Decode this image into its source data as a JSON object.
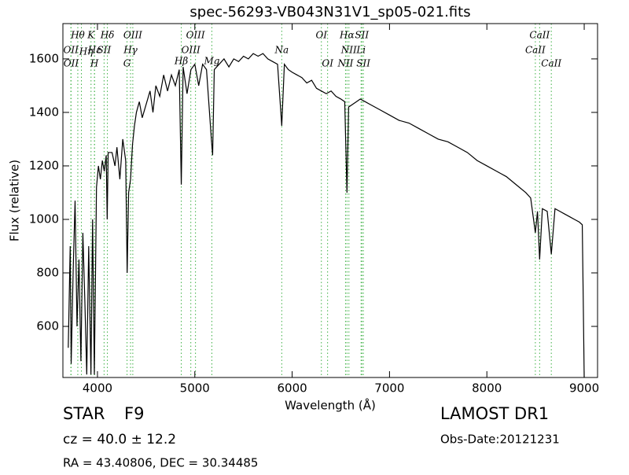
{
  "chart_data": {
    "type": "line",
    "title": "spec-56293-VB043N31V1_sp05-021.fits",
    "x_label": "Wavelength (Å)",
    "y_label": "Flux (relative)",
    "xlim": [
      3645,
      9137
    ],
    "ylim": [
      409,
      1732
    ],
    "xticks": [
      4000,
      5000,
      6000,
      7000,
      8000,
      9000
    ],
    "yticks": [
      600,
      800,
      1000,
      1200,
      1400,
      1600
    ],
    "series": [
      {
        "color": "#000000",
        "x": [
          3700,
          3720,
          3730,
          3750,
          3770,
          3790,
          3810,
          3830,
          3850,
          3870,
          3890,
          3910,
          3933,
          3950,
          3968,
          3990,
          4010,
          4030,
          4050,
          4070,
          4090,
          4100,
          4110,
          4150,
          4180,
          4200,
          4230,
          4260,
          4290,
          4305,
          4320,
          4340,
          4360,
          4380,
          4400,
          4430,
          4460,
          4500,
          4540,
          4570,
          4600,
          4640,
          4680,
          4720,
          4760,
          4800,
          4840,
          4861,
          4880,
          4920,
          4960,
          5000,
          5040,
          5080,
          5120,
          5170,
          5183,
          5200,
          5250,
          5300,
          5350,
          5400,
          5450,
          5500,
          5550,
          5600,
          5650,
          5700,
          5750,
          5800,
          5850,
          5893,
          5920,
          5960,
          6000,
          6050,
          6100,
          6150,
          6200,
          6250,
          6300,
          6350,
          6400,
          6450,
          6500,
          6540,
          6563,
          6580,
          6620,
          6660,
          6700,
          6750,
          6800,
          6900,
          7000,
          7100,
          7200,
          7300,
          7400,
          7500,
          7600,
          7700,
          7800,
          7900,
          8000,
          8100,
          8200,
          8300,
          8400,
          8450,
          8498,
          8520,
          8542,
          8570,
          8620,
          8662,
          8700,
          8750,
          8800,
          8850,
          8900,
          8950,
          8980,
          8990,
          9000
        ],
        "values": [
          520,
          900,
          460,
          800,
          1070,
          600,
          850,
          470,
          950,
          700,
          420,
          900,
          420,
          1000,
          420,
          1120,
          1200,
          1150,
          1220,
          1180,
          1240,
          1000,
          1250,
          1250,
          1200,
          1270,
          1150,
          1300,
          1220,
          800,
          1100,
          1150,
          1280,
          1350,
          1400,
          1440,
          1380,
          1430,
          1480,
          1400,
          1500,
          1460,
          1540,
          1480,
          1540,
          1500,
          1560,
          1130,
          1570,
          1470,
          1560,
          1580,
          1500,
          1580,
          1560,
          1300,
          1240,
          1560,
          1580,
          1600,
          1570,
          1600,
          1590,
          1610,
          1600,
          1620,
          1610,
          1620,
          1600,
          1590,
          1580,
          1350,
          1580,
          1560,
          1550,
          1540,
          1530,
          1510,
          1520,
          1490,
          1480,
          1470,
          1480,
          1460,
          1450,
          1440,
          1100,
          1420,
          1430,
          1440,
          1450,
          1440,
          1430,
          1410,
          1390,
          1370,
          1360,
          1340,
          1320,
          1300,
          1290,
          1270,
          1250,
          1220,
          1200,
          1180,
          1160,
          1130,
          1100,
          1080,
          950,
          1030,
          850,
          1040,
          1030,
          870,
          1040,
          1030,
          1020,
          1010,
          1000,
          990,
          980,
          700,
          400
        ]
      }
    ],
    "lines": [
      {
        "label": "Hθ",
        "wavelength": 3798
      },
      {
        "label": "K",
        "wavelength": 3934
      },
      {
        "label": "Hδ",
        "wavelength": 4102
      },
      {
        "label": "OIII",
        "wavelength": 4363
      },
      {
        "label": "OIII",
        "wavelength": 5007
      },
      {
        "label": "OI",
        "wavelength": 6300
      },
      {
        "label": "Hα",
        "wavelength": 6563
      },
      {
        "label": "SII",
        "wavelength": 6716
      },
      {
        "label": "CaII",
        "wavelength": 8542
      },
      {
        "label": "OII",
        "wavelength": 3727
      },
      {
        "label": "Hε",
        "wavelength": 3970
      },
      {
        "label": "SII",
        "wavelength": 4068
      },
      {
        "label": "Hγ",
        "wavelength": 4340
      },
      {
        "label": "OIII",
        "wavelength": 4959
      },
      {
        "label": "Na",
        "wavelength": 5893
      },
      {
        "label": "NII",
        "wavelength": 6583
      },
      {
        "label": "Li",
        "wavelength": 6708
      },
      {
        "label": "CaII",
        "wavelength": 8498
      },
      {
        "label": "OII",
        "wavelength": 3729
      },
      {
        "label": "Hη",
        "wavelength": 3835
      },
      {
        "label": "H",
        "wavelength": 3969
      },
      {
        "label": "G",
        "wavelength": 4304
      },
      {
        "label": "Hβ",
        "wavelength": 4861
      },
      {
        "label": "Mg",
        "wavelength": 5175
      },
      {
        "label": "OI",
        "wavelength": 6364
      },
      {
        "label": "NII",
        "wavelength": 6548
      },
      {
        "label": "SII",
        "wavelength": 6731
      },
      {
        "label": "CaII",
        "wavelength": 8662
      }
    ]
  },
  "footer": {
    "class": "STAR",
    "subclass": "F9",
    "cz": "cz = 40.0 ± 12.2",
    "coords": "RA = 43.40806, DEC = 30.34485",
    "survey": "LAMOST DR1",
    "date": "Obs-Date:20121231"
  }
}
